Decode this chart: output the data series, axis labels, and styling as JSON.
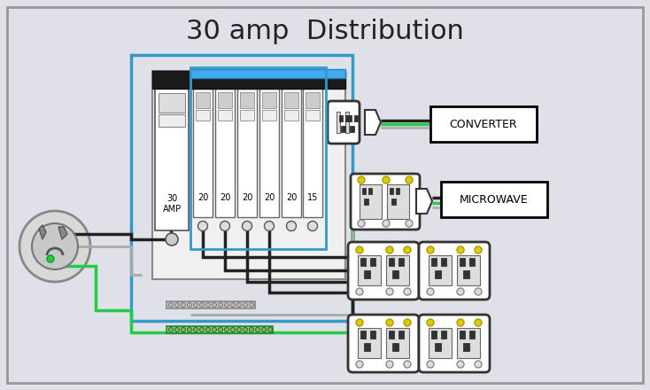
{
  "title": "30 amp  Distribution",
  "title_fontsize": 22,
  "bg_color": "#e0e0e8",
  "border_color": "#999999",
  "blue_panel_color": "#3399cc",
  "breaker_labels_small": [
    "20",
    "20",
    "20",
    "20",
    "20",
    "15"
  ],
  "converter_label": "CONVERTER",
  "microwave_label": "MICROWAVE",
  "wire_black": "#222222",
  "wire_green": "#22cc44",
  "wire_gray": "#aaaaaa",
  "wire_white": "#cccccc",
  "wire_blue": "#4499cc"
}
